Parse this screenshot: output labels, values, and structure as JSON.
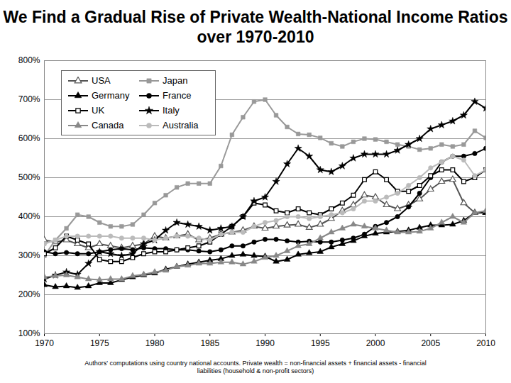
{
  "chart_data": {
    "type": "line",
    "title": "We Find a Gradual Rise of Private Wealth-National Income Ratios over 1970-2010",
    "caption": "Authors' computations using country national accounts. Private wealth = non-financial assets + financial assets - financial liabilities (household & non-profit sectors)",
    "x": [
      1970,
      1971,
      1972,
      1973,
      1974,
      1975,
      1976,
      1977,
      1978,
      1979,
      1980,
      1981,
      1982,
      1983,
      1984,
      1985,
      1986,
      1987,
      1988,
      1989,
      1990,
      1991,
      1992,
      1993,
      1994,
      1995,
      1996,
      1997,
      1998,
      1999,
      2000,
      2001,
      2002,
      2003,
      2004,
      2005,
      2006,
      2007,
      2008,
      2009,
      2010
    ],
    "xlim": [
      1970,
      2010
    ],
    "xticks": [
      1970,
      1975,
      1980,
      1985,
      1990,
      1995,
      2000,
      2005,
      2010
    ],
    "ylim": [
      100,
      800
    ],
    "yticks": [
      {
        "value": 100,
        "label": "100%"
      },
      {
        "value": 200,
        "label": "200%"
      },
      {
        "value": 300,
        "label": "300%"
      },
      {
        "value": 400,
        "label": "400%"
      },
      {
        "value": 500,
        "label": "500%"
      },
      {
        "value": 600,
        "label": "600%"
      },
      {
        "value": 700,
        "label": "700%"
      },
      {
        "value": 800,
        "label": "800%"
      }
    ],
    "grid": true,
    "legend": "top-left",
    "series": [
      {
        "name": "USA",
        "color": "#555555",
        "marker": "triangle_open",
        "values": [
          340,
          335,
          340,
          330,
          320,
          330,
          325,
          320,
          325,
          330,
          350,
          345,
          350,
          355,
          340,
          345,
          355,
          360,
          365,
          375,
          370,
          375,
          378,
          380,
          372,
          380,
          395,
          415,
          430,
          455,
          450,
          430,
          420,
          430,
          445,
          470,
          490,
          495,
          435,
          410,
          410
        ]
      },
      {
        "name": "Japan",
        "color": "#999999",
        "marker": "square",
        "values": [
          300,
          340,
          370,
          405,
          400,
          385,
          375,
          375,
          380,
          405,
          435,
          455,
          475,
          485,
          485,
          485,
          530,
          610,
          655,
          695,
          700,
          660,
          630,
          612,
          610,
          602,
          588,
          580,
          592,
          600,
          598,
          592,
          585,
          580,
          572,
          575,
          585,
          580,
          585,
          620,
          602
        ]
      },
      {
        "name": "Germany",
        "color": "#000000",
        "marker": "triangle",
        "values": [
          225,
          220,
          222,
          218,
          222,
          230,
          230,
          238,
          245,
          250,
          255,
          265,
          272,
          278,
          283,
          288,
          292,
          300,
          303,
          300,
          298,
          285,
          290,
          303,
          307,
          310,
          322,
          330,
          338,
          350,
          357,
          360,
          362,
          365,
          372,
          378,
          378,
          380,
          390,
          410,
          410
        ]
      },
      {
        "name": "France",
        "color": "#000000",
        "marker": "circle",
        "values": [
          310,
          305,
          308,
          305,
          305,
          310,
          315,
          318,
          315,
          320,
          318,
          318,
          315,
          315,
          312,
          310,
          315,
          325,
          325,
          335,
          342,
          342,
          338,
          335,
          337,
          335,
          335,
          340,
          345,
          355,
          375,
          385,
          400,
          425,
          460,
          500,
          540,
          555,
          555,
          562,
          575
        ]
      },
      {
        "name": "UK",
        "color": "#000000",
        "marker": "square_open",
        "values": [
          305,
          320,
          350,
          340,
          330,
          290,
          285,
          285,
          295,
          305,
          310,
          310,
          315,
          320,
          325,
          335,
          355,
          375,
          400,
          435,
          430,
          415,
          410,
          420,
          410,
          405,
          420,
          435,
          455,
          495,
          515,
          495,
          465,
          465,
          480,
          505,
          520,
          520,
          490,
          500,
          520
        ]
      },
      {
        "name": "Italy",
        "color": "#000000",
        "marker": "star",
        "values": [
          240,
          250,
          258,
          252,
          280,
          310,
          305,
          300,
          305,
          330,
          340,
          365,
          385,
          380,
          375,
          365,
          370,
          375,
          400,
          440,
          450,
          490,
          535,
          575,
          555,
          520,
          515,
          530,
          550,
          560,
          560,
          560,
          570,
          585,
          600,
          625,
          635,
          645,
          660,
          695,
          678
        ]
      },
      {
        "name": "Canada",
        "color": "#888888",
        "marker": "triangle",
        "values": [
          245,
          248,
          250,
          245,
          240,
          238,
          240,
          240,
          248,
          252,
          258,
          262,
          272,
          275,
          280,
          280,
          283,
          283,
          278,
          285,
          295,
          300,
          312,
          325,
          330,
          345,
          360,
          370,
          380,
          375,
          370,
          365,
          360,
          360,
          362,
          370,
          385,
          400,
          385,
          410,
          415
        ]
      },
      {
        "name": "Australia",
        "color": "#bbbbbb",
        "marker": "circle",
        "values": [
          330,
          340,
          350,
          350,
          350,
          350,
          350,
          345,
          345,
          345,
          340,
          345,
          350,
          350,
          345,
          340,
          355,
          360,
          360,
          375,
          385,
          390,
          400,
          400,
          395,
          400,
          405,
          410,
          420,
          440,
          440,
          450,
          460,
          480,
          500,
          525,
          540,
          555,
          545,
          505,
          520
        ]
      }
    ]
  }
}
